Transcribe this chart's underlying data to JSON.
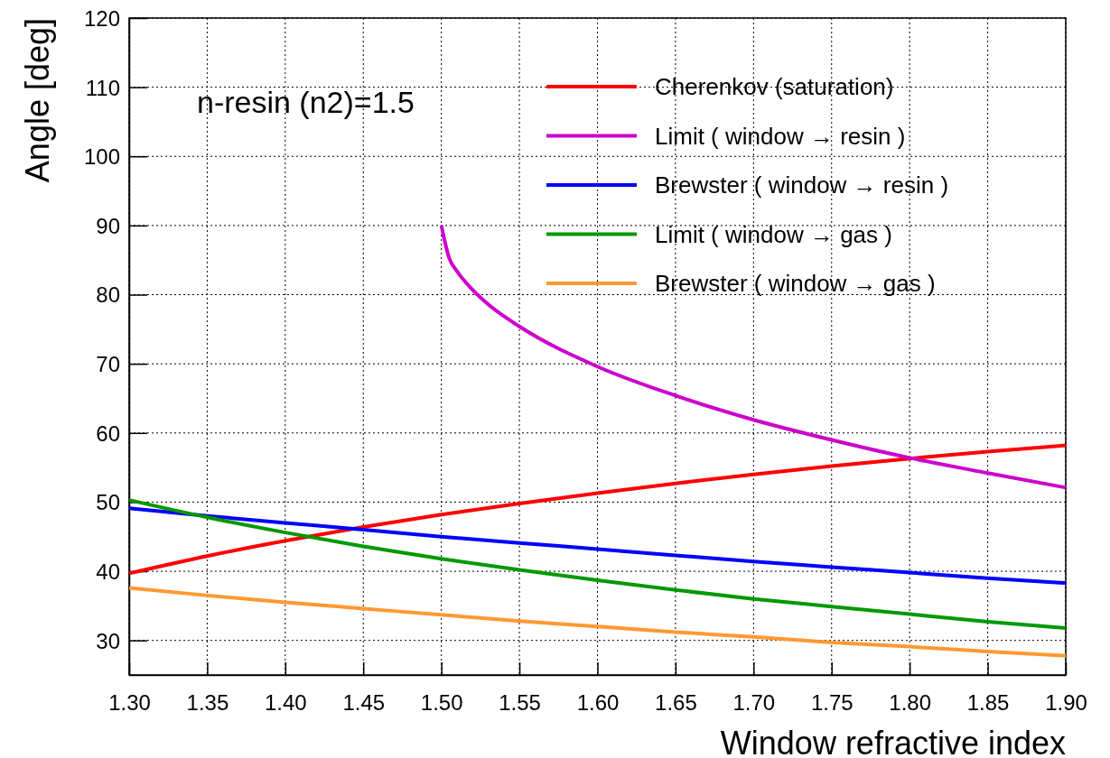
{
  "chart_data": {
    "type": "line",
    "xlabel": "Window refractive index",
    "ylabel": "Angle [deg]",
    "annotations": [
      "n-resin (n2)=1.5"
    ],
    "x": [
      1.3,
      1.35,
      1.4,
      1.45,
      1.5,
      1.55,
      1.6,
      1.65,
      1.7,
      1.75,
      1.8,
      1.85,
      1.9
    ],
    "series": [
      {
        "name": "Cherenkov (saturation)",
        "color": "#ff0000",
        "values": [
          39.7,
          42.2,
          44.4,
          46.4,
          48.2,
          49.8,
          51.3,
          52.7,
          54.0,
          55.2,
          56.3,
          57.3,
          58.2
        ]
      },
      {
        "name": "Limit ( window → resin )",
        "color": "#cc00cc",
        "x": [
          1.5,
          1.505,
          1.51,
          1.52,
          1.53,
          1.55,
          1.6,
          1.65,
          1.7,
          1.75,
          1.8,
          1.85,
          1.9
        ],
        "values": [
          90.0,
          85.3,
          83.4,
          80.7,
          78.6,
          75.4,
          69.6,
          65.4,
          61.9,
          59.0,
          56.4,
          54.2,
          52.1
        ]
      },
      {
        "name": "Brewster ( window → resin )",
        "color": "#0000ff",
        "values": [
          49.1,
          48.0,
          47.0,
          46.0,
          45.0,
          44.1,
          43.2,
          42.3,
          41.4,
          40.6,
          39.8,
          39.0,
          38.3
        ]
      },
      {
        "name": "Limit ( window → gas )",
        "color": "#009900",
        "values": [
          50.3,
          47.8,
          45.6,
          43.6,
          41.8,
          40.2,
          38.7,
          37.3,
          36.0,
          34.9,
          33.8,
          32.7,
          31.8
        ]
      },
      {
        "name": "Brewster ( window → gas )",
        "color": "#ff9933",
        "values": [
          37.6,
          36.5,
          35.5,
          34.6,
          33.7,
          32.8,
          32.0,
          31.2,
          30.5,
          29.7,
          29.1,
          28.4,
          27.8
        ]
      }
    ],
    "xlim": [
      1.3,
      1.9
    ],
    "xticks": [
      {
        "value": 1.3,
        "label": "1.30"
      },
      1.35,
      {
        "value": 1.4,
        "label": "1.40"
      },
      1.45,
      {
        "value": 1.5,
        "label": "1.50"
      },
      1.55,
      {
        "value": 1.6,
        "label": "1.60"
      },
      1.65,
      {
        "value": 1.7,
        "label": "1.70"
      },
      1.75,
      {
        "value": 1.8,
        "label": "1.80"
      },
      1.85,
      {
        "value": 1.9,
        "label": "1.90"
      }
    ],
    "ylim": [
      25,
      120
    ],
    "yticks": [
      30,
      40,
      50,
      60,
      70,
      80,
      90,
      100,
      110,
      120
    ],
    "grid": true,
    "legend": "top right",
    "line_style": "solid",
    "marker": "none"
  }
}
